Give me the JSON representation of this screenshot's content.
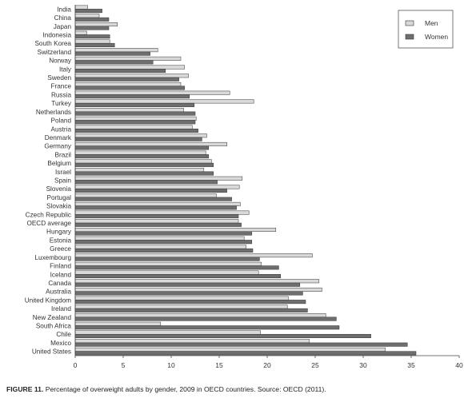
{
  "chart_data": {
    "type": "bar",
    "orientation": "horizontal",
    "categories": [
      "India",
      "China",
      "Japan",
      "Indonesia",
      "South Korea",
      "Switzerland",
      "Norway",
      "Italy",
      "Sweden",
      "France",
      "Russia",
      "Turkey",
      "Netherlands",
      "Poland",
      "Austria",
      "Denmark",
      "Germany",
      "Brazil",
      "Belgium",
      "Israel",
      "Spain",
      "Slovenia",
      "Portugal",
      "Slovakia",
      "Czech Republic",
      "OECD average",
      "Hungary",
      "Estonia",
      "Greece",
      "Luxembourg",
      "Finland",
      "Iceland",
      "Canada",
      "Australia",
      "United Kingdom",
      "Ireland",
      "New Zealand",
      "South Africa",
      "Chile",
      "Mexico",
      "United States"
    ],
    "series": [
      {
        "name": "Men",
        "color": "#d9d9d9",
        "values": [
          1.3,
          2.5,
          4.4,
          1.2,
          3.6,
          8.6,
          11.0,
          11.4,
          11.8,
          11.0,
          16.1,
          18.6,
          11.3,
          12.6,
          12.2,
          13.7,
          15.8,
          13.6,
          14.2,
          13.4,
          17.4,
          17.1,
          14.7,
          17.2,
          18.1,
          17.0,
          20.9,
          17.6,
          17.8,
          24.7,
          19.4,
          19.1,
          25.4,
          25.7,
          22.2,
          22.1,
          26.1,
          8.9,
          19.3,
          24.4,
          32.3
        ]
      },
      {
        "name": "Women",
        "color": "#6e6e6e",
        "values": [
          2.8,
          3.5,
          3.5,
          3.6,
          4.1,
          7.8,
          8.1,
          9.4,
          10.8,
          11.4,
          11.9,
          12.4,
          12.5,
          12.5,
          12.8,
          13.2,
          13.9,
          13.9,
          14.4,
          14.4,
          14.8,
          15.8,
          16.3,
          16.8,
          17.0,
          17.3,
          18.4,
          18.4,
          18.5,
          19.2,
          21.2,
          21.4,
          23.4,
          23.7,
          24.0,
          24.2,
          27.2,
          27.5,
          30.8,
          34.6,
          35.5
        ]
      }
    ],
    "xlim": [
      0,
      40
    ],
    "xticks": [
      "0",
      "5",
      "10",
      "15",
      "20",
      "25",
      "30",
      "35",
      "40"
    ],
    "legend_position": "top-right",
    "grid": false
  },
  "legend": {
    "men_label": "Men",
    "women_label": "Women"
  },
  "caption": {
    "label": "FIGURE 11.",
    "text": " Percentage of overweight adults by gender, 2009 in OECD countries. Source: OECD (2011)."
  }
}
